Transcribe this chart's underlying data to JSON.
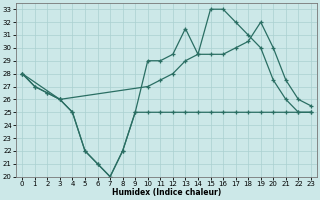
{
  "xlabel": "Humidex (Indice chaleur)",
  "xlim": [
    -0.5,
    23.5
  ],
  "ylim": [
    20,
    33.5
  ],
  "yticks": [
    20,
    21,
    22,
    23,
    24,
    25,
    26,
    27,
    28,
    29,
    30,
    31,
    32,
    33
  ],
  "xticks": [
    0,
    1,
    2,
    3,
    4,
    5,
    6,
    7,
    8,
    9,
    10,
    11,
    12,
    13,
    14,
    15,
    16,
    17,
    18,
    19,
    20,
    21,
    22,
    23
  ],
  "line_color": "#2a6e63",
  "bg_color": "#cce8e8",
  "grid_color": "#aad0d0",
  "l1_x": [
    0,
    1,
    2,
    3,
    4,
    5,
    6,
    7,
    8,
    9,
    10,
    11,
    12,
    13,
    14,
    15,
    16,
    17,
    18,
    19,
    20,
    21,
    22,
    23
  ],
  "l1_y": [
    28,
    27,
    26.5,
    26,
    25,
    22,
    21,
    20,
    22,
    25,
    25,
    25,
    25,
    25,
    25,
    25,
    25,
    25,
    25,
    25,
    25,
    25,
    25,
    25
  ],
  "l2_x": [
    0,
    1,
    2,
    3,
    4,
    5,
    6,
    7,
    8,
    9,
    10,
    11,
    12,
    13,
    14,
    15,
    16,
    17,
    18,
    19,
    20,
    21,
    22,
    23
  ],
  "l2_y": [
    28,
    27,
    26.5,
    26,
    25,
    22,
    21,
    20,
    22,
    25,
    29,
    29,
    29.5,
    31.5,
    29.5,
    33,
    33,
    32,
    31,
    30,
    27.5,
    26,
    25,
    25
  ],
  "l3_x": [
    0,
    3,
    10,
    11,
    12,
    13,
    14,
    15,
    16,
    17,
    18,
    19,
    20,
    21,
    22,
    23
  ],
  "l3_y": [
    28,
    26,
    27,
    27.5,
    28,
    29,
    29.5,
    29.5,
    29.5,
    30,
    30.5,
    32,
    30,
    27.5,
    26,
    25.5
  ],
  "marker": "+",
  "markersize": 3.5,
  "linewidth": 0.9,
  "tick_labelsize": 5.0
}
